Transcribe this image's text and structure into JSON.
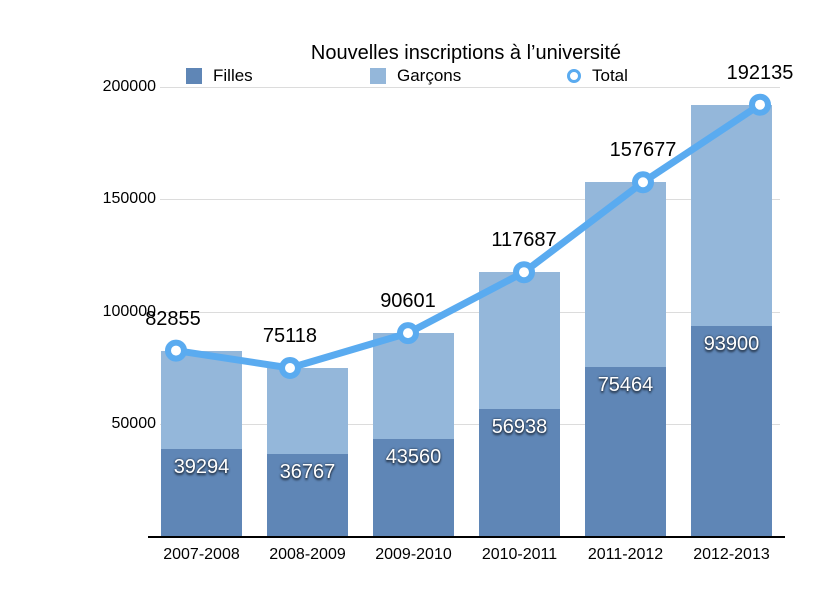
{
  "chart_data": {
    "type": "bar",
    "subtype": "stacked-bar-with-line",
    "title": "Nouvelles inscriptions à l’université",
    "xlabel": "",
    "ylabel": "",
    "ylim": [
      0,
      200000
    ],
    "yticks": [
      "50000",
      "100000",
      "150000",
      "200000"
    ],
    "grid": true,
    "legend_position": "top",
    "categories": [
      "2007-2008",
      "2008-2009",
      "2009-2010",
      "2010-2011",
      "2011-2012",
      "2012-2013"
    ],
    "series": [
      {
        "name": "Filles",
        "type": "bar",
        "color": "#5f86b6",
        "values": [
          39294,
          36767,
          43560,
          56938,
          75464,
          93900
        ],
        "labels": [
          "39294",
          "36767",
          "43560",
          "56938",
          "75464",
          "93900"
        ]
      },
      {
        "name": "Garçons",
        "type": "bar",
        "color": "#94b7da",
        "values": [
          43561,
          38351,
          47041,
          60749,
          82213,
          98235
        ]
      },
      {
        "name": "Total",
        "type": "line",
        "color": "#5aabf0",
        "values": [
          82855,
          75118,
          90601,
          117687,
          157677,
          192135
        ],
        "labels": [
          "82855",
          "75118",
          "90601",
          "117687",
          "157677",
          "192135"
        ]
      }
    ]
  },
  "legend": {
    "filles": "Filles",
    "garcons": "Garçons",
    "total": "Total"
  }
}
